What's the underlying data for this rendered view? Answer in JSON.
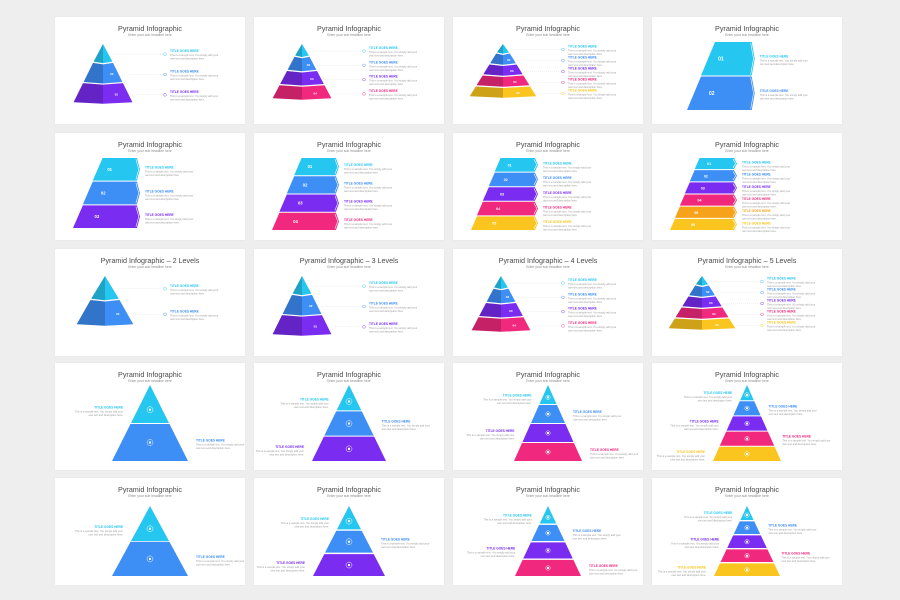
{
  "colors": {
    "cyan": "#25c6f0",
    "blue": "#3d8ef5",
    "violet": "#7a2cf0",
    "magenta": "#f0287e",
    "orange": "#f7a21b",
    "yellow": "#fac51e"
  },
  "text": {
    "title_generic": "Pyramid Infographic",
    "title_2": "Pyramid Infographic – 2 Levels",
    "title_3": "Pyramid Infographic – 3 Levels",
    "title_4": "Pyramid Infographic – 4 Levels",
    "title_5": "Pyramid Infographic – 5 Levels",
    "subtitle": "Enter your sub headline here",
    "item_label": "TITLE GOES HERE",
    "item_desc_1": "This is a sample text. You simply add your",
    "item_desc_2": "own text and description here."
  },
  "numbers": [
    "01",
    "02",
    "03",
    "04",
    "05",
    "06"
  ],
  "slides": [
    {
      "title": "title_generic",
      "type": "pyr3d",
      "n": 3
    },
    {
      "title": "title_generic",
      "type": "pyr3d",
      "n": 4
    },
    {
      "title": "title_generic",
      "type": "pyr3d",
      "n": 5
    },
    {
      "title": "title_generic",
      "type": "arrow",
      "n": 2
    },
    {
      "title": "title_generic",
      "type": "arrow",
      "n": 3
    },
    {
      "title": "title_generic",
      "type": "arrow",
      "n": 4
    },
    {
      "title": "title_generic",
      "type": "arrow",
      "n": 5
    },
    {
      "title": "title_generic",
      "type": "arrow",
      "n": 6
    },
    {
      "title": "title_2",
      "type": "pyr3d",
      "n": 2
    },
    {
      "title": "title_3",
      "type": "pyr3d",
      "n": 3
    },
    {
      "title": "title_4",
      "type": "pyr3d",
      "n": 4
    },
    {
      "title": "title_5",
      "type": "pyr3d",
      "n": 5
    },
    {
      "title": "title_generic",
      "type": "flat",
      "n": 2
    },
    {
      "title": "title_generic",
      "type": "flat",
      "n": 3
    },
    {
      "title": "title_generic",
      "type": "flat",
      "n": 4
    },
    {
      "title": "title_generic",
      "type": "flat",
      "n": 5
    },
    {
      "title": "title_generic",
      "type": "solid",
      "n": 2
    },
    {
      "title": "title_generic",
      "type": "solid",
      "n": 3
    },
    {
      "title": "title_generic",
      "type": "solid",
      "n": 4
    },
    {
      "title": "title_generic",
      "type": "solid",
      "n": 5
    }
  ]
}
